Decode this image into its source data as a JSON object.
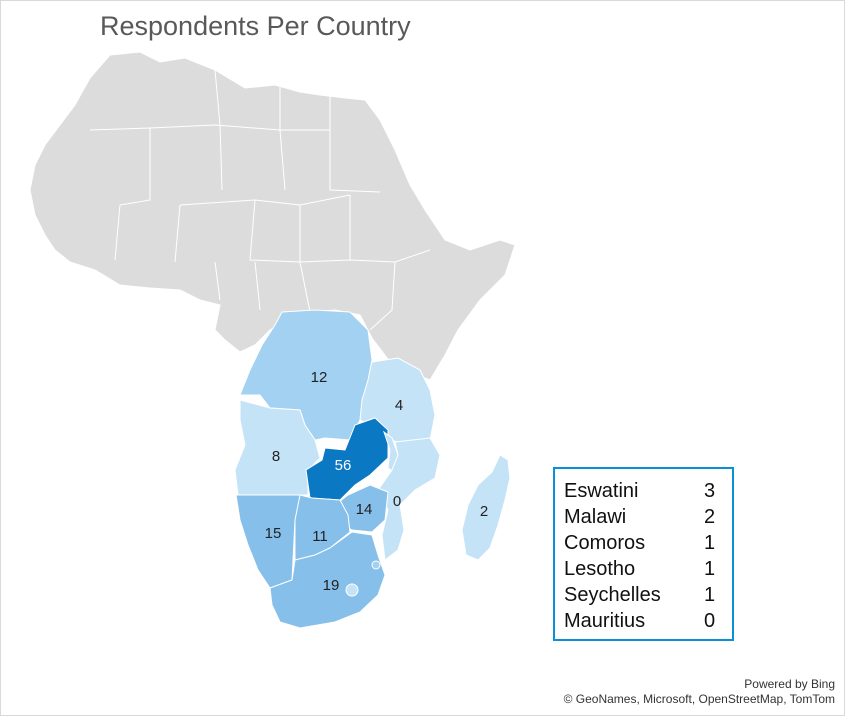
{
  "title": "Respondents Per Country",
  "map_labels": {
    "drc": "12",
    "tanzania": "4",
    "angola": "8",
    "zambia": "56",
    "mozambique": "0",
    "zimbabwe": "14",
    "namibia": "15",
    "botswana": "11",
    "south_africa": "19",
    "madagascar": "2"
  },
  "legend": [
    {
      "name": "Eswatini",
      "value": "3"
    },
    {
      "name": "Malawi",
      "value": "2"
    },
    {
      "name": "Comoros",
      "value": "1"
    },
    {
      "name": "Lesotho",
      "value": "1"
    },
    {
      "name": "Seychelles",
      "value": "1"
    },
    {
      "name": "Mauritius",
      "value": "0"
    }
  ],
  "credits": {
    "line1": "Powered by Bing",
    "line2": "© GeoNames, Microsoft, OpenStreetMap, TomTom"
  },
  "colors": {
    "land": "#dcdcdc",
    "lightest": "#c5e3f7",
    "light": "#a3d1f2",
    "mid": "#86c0ea",
    "dark": "#0b78c4",
    "legend_border": "#0b90d6"
  }
}
